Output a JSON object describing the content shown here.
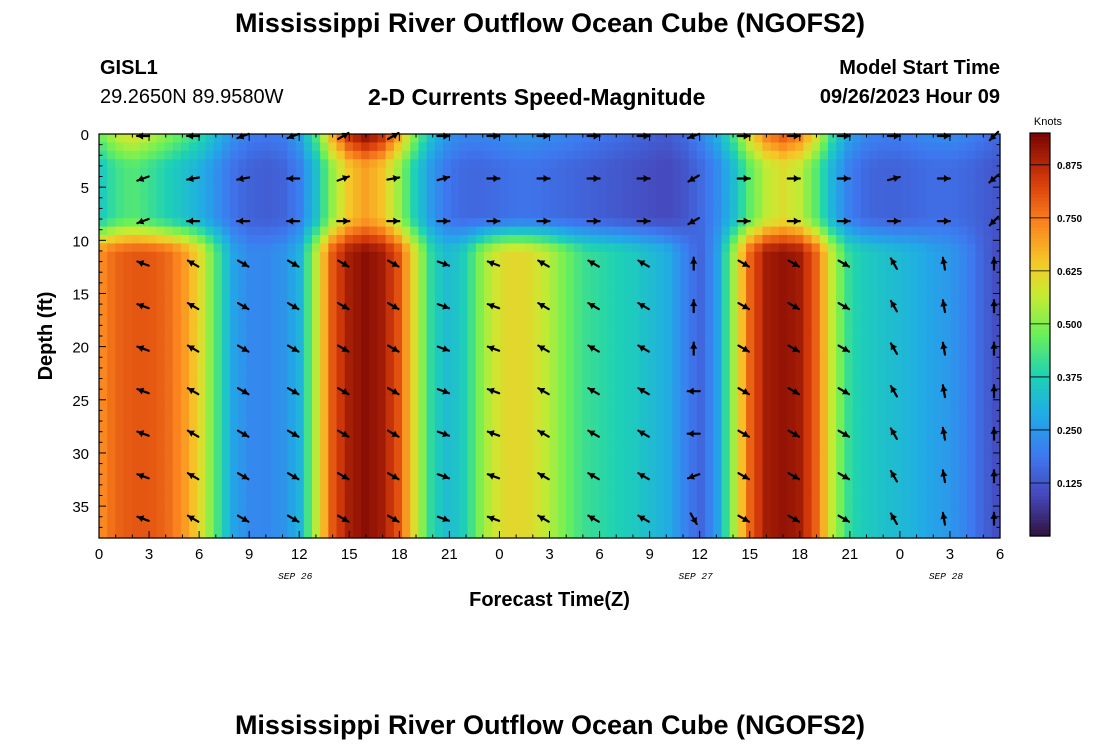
{
  "title": "Mississippi River Outflow Ocean Cube (NGOFS2)",
  "title_bottom": "Mississippi River Outflow Ocean Cube (NGOFS2)",
  "station": {
    "id": "GISL1",
    "coords": "29.2650N  89.9580W"
  },
  "subtitle": "2-D Currents Speed-Magnitude",
  "model_start": {
    "label": "Model Start Time",
    "value": "09/26/2023 Hour 09"
  },
  "colors": {
    "arrow": "#000000"
  },
  "chart_data": {
    "type": "heatmap",
    "title": "2-D Currents Speed-Magnitude",
    "xlabel": "Forecast Time(Z)",
    "ylabel": "Depth (ft)",
    "x_range": [
      0,
      54
    ],
    "y_range": [
      0,
      38
    ],
    "x_tick_values": [
      0,
      3,
      6,
      9,
      12,
      15,
      18,
      21,
      24,
      27,
      30,
      33,
      36,
      39,
      42,
      45,
      48,
      51,
      54
    ],
    "x_tick_labels": [
      "0",
      "3",
      "6",
      "9",
      "12",
      "15",
      "18",
      "21",
      "0",
      "3",
      "6",
      "9",
      "12",
      "15",
      "18",
      "21",
      "0",
      "3",
      "6"
    ],
    "y_tick_values": [
      0,
      5,
      10,
      15,
      20,
      25,
      30,
      35
    ],
    "y_tick_labels": [
      "0",
      "5",
      "10",
      "15",
      "20",
      "25",
      "30",
      "35"
    ],
    "date_labels": [
      {
        "x": 12,
        "text": "SEP 26"
      },
      {
        "x": 36,
        "text": "SEP 27"
      },
      {
        "x": 51,
        "text": "SEP 28"
      }
    ],
    "colorbar": {
      "label": "Knots",
      "min": 0,
      "max": 0.95,
      "ticks": [
        0.125,
        0.25,
        0.375,
        0.5,
        0.625,
        0.75,
        0.875
      ],
      "tick_labels": [
        "0.125",
        "0.250",
        "0.375",
        "0.500",
        "0.625",
        "0.750",
        "0.875"
      ],
      "colormap": "turbo"
    },
    "speed_profile_hours": [
      0,
      1,
      2,
      3,
      4,
      5,
      6,
      7,
      8,
      9,
      10,
      11,
      12,
      13,
      14,
      15,
      16,
      17,
      18,
      19,
      20,
      21,
      22,
      23,
      24,
      25,
      26,
      27,
      28,
      29,
      30,
      31,
      32,
      33,
      34,
      35,
      36,
      37,
      38,
      39,
      40,
      41,
      42,
      43,
      44,
      45,
      46,
      47,
      48,
      49,
      50,
      51,
      52,
      53,
      54
    ],
    "surface_speed": [
      0.35,
      0.42,
      0.45,
      0.42,
      0.38,
      0.34,
      0.3,
      0.24,
      0.18,
      0.15,
      0.14,
      0.15,
      0.2,
      0.33,
      0.52,
      0.65,
      0.7,
      0.65,
      0.52,
      0.36,
      0.24,
      0.18,
      0.16,
      0.16,
      0.17,
      0.18,
      0.18,
      0.17,
      0.16,
      0.15,
      0.14,
      0.13,
      0.12,
      0.11,
      0.1,
      0.12,
      0.16,
      0.22,
      0.32,
      0.46,
      0.56,
      0.6,
      0.56,
      0.45,
      0.3,
      0.2,
      0.16,
      0.15,
      0.15,
      0.16,
      0.17,
      0.17,
      0.16,
      0.14,
      0.12
    ],
    "deep_speed": [
      0.72,
      0.78,
      0.8,
      0.8,
      0.78,
      0.72,
      0.62,
      0.45,
      0.28,
      0.22,
      0.22,
      0.24,
      0.3,
      0.55,
      0.8,
      0.9,
      0.93,
      0.9,
      0.8,
      0.58,
      0.38,
      0.32,
      0.38,
      0.52,
      0.6,
      0.62,
      0.6,
      0.55,
      0.48,
      0.42,
      0.4,
      0.38,
      0.36,
      0.33,
      0.3,
      0.22,
      0.15,
      0.25,
      0.52,
      0.78,
      0.9,
      0.92,
      0.9,
      0.78,
      0.55,
      0.4,
      0.36,
      0.34,
      0.32,
      0.3,
      0.27,
      0.25,
      0.21,
      0.15,
      0.1
    ],
    "arrow_times": [
      3,
      6,
      9,
      12,
      15,
      18,
      21,
      24,
      27,
      30,
      33,
      36,
      39,
      42,
      45,
      48,
      51,
      54
    ],
    "arrow_depths": [
      0,
      4,
      8,
      12,
      16,
      20,
      24,
      28,
      32,
      36
    ],
    "arrow_directions_deg_by_time": [
      [
        180,
        200,
        200,
        160,
        160,
        160,
        160,
        160,
        160,
        160
      ],
      [
        180,
        190,
        180,
        150,
        150,
        150,
        150,
        150,
        150,
        150
      ],
      [
        200,
        190,
        180,
        330,
        330,
        330,
        330,
        330,
        330,
        330
      ],
      [
        200,
        180,
        180,
        330,
        330,
        330,
        330,
        330,
        330,
        330
      ],
      [
        30,
        20,
        0,
        330,
        330,
        330,
        330,
        330,
        330,
        330
      ],
      [
        30,
        10,
        0,
        330,
        330,
        330,
        330,
        330,
        330,
        330
      ],
      [
        0,
        15,
        0,
        340,
        340,
        340,
        340,
        340,
        340,
        340
      ],
      [
        0,
        0,
        0,
        160,
        160,
        160,
        160,
        160,
        160,
        160
      ],
      [
        0,
        0,
        0,
        150,
        150,
        150,
        150,
        150,
        150,
        150
      ],
      [
        0,
        0,
        0,
        150,
        150,
        150,
        150,
        150,
        150,
        150
      ],
      [
        0,
        0,
        0,
        150,
        150,
        150,
        150,
        150,
        150,
        150
      ],
      [
        200,
        210,
        210,
        90,
        90,
        90,
        180,
        180,
        200,
        300
      ],
      [
        0,
        0,
        0,
        330,
        330,
        330,
        330,
        330,
        330,
        330
      ],
      [
        0,
        0,
        0,
        330,
        330,
        330,
        330,
        330,
        330,
        330
      ],
      [
        0,
        0,
        0,
        330,
        330,
        330,
        330,
        330,
        330,
        330
      ],
      [
        0,
        15,
        0,
        120,
        120,
        120,
        120,
        120,
        120,
        120
      ],
      [
        0,
        0,
        0,
        100,
        100,
        100,
        100,
        100,
        100,
        100
      ],
      [
        225,
        220,
        225,
        90,
        90,
        90,
        90,
        90,
        90,
        90
      ]
    ]
  }
}
